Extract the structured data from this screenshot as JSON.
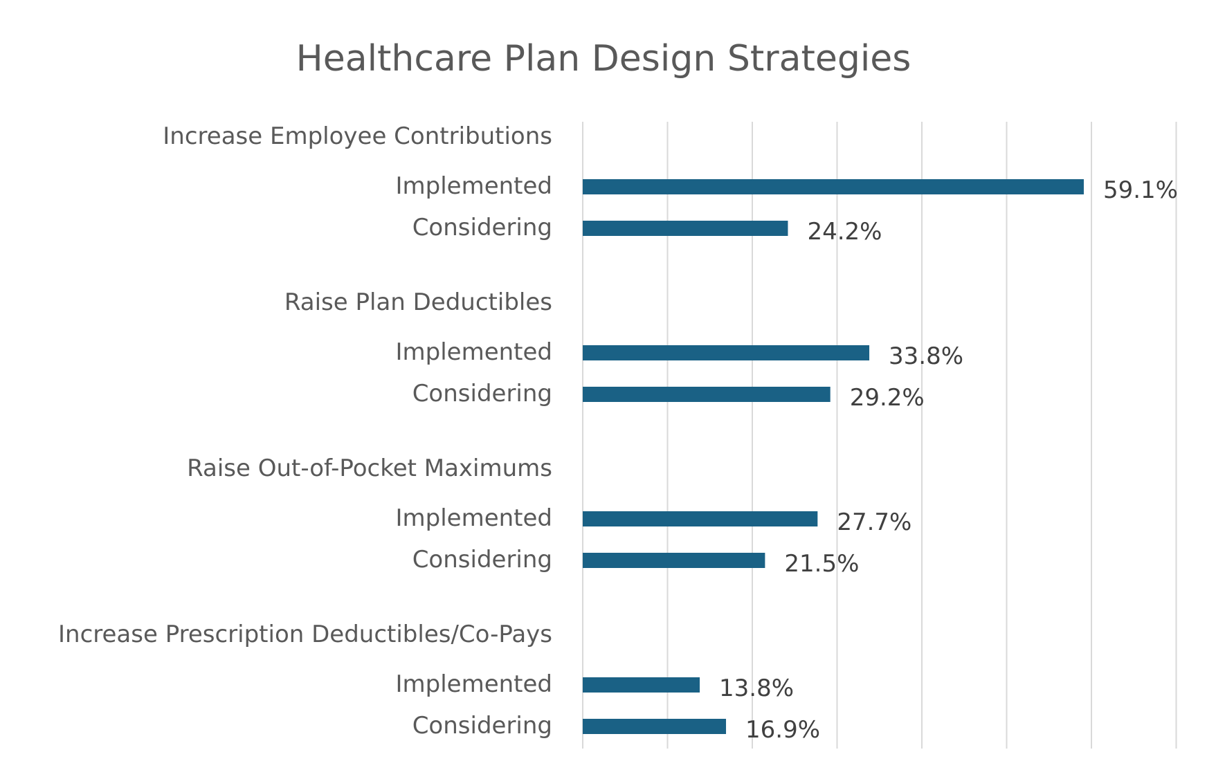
{
  "chart_data": {
    "type": "bar",
    "orientation": "horizontal",
    "title": "Healthcare Plan Design Strategies",
    "xlabel": "",
    "ylabel": "",
    "xlim": [
      0,
      70
    ],
    "x_tick_step": 10,
    "grid": "vertical",
    "legend": "none",
    "bar_color": "#1a6185",
    "value_suffix": "%",
    "groups": [
      {
        "label": "Increase Employee Contributions",
        "items": [
          {
            "label": "Implemented",
            "value": 59.1
          },
          {
            "label": "Considering",
            "value": 24.2
          }
        ]
      },
      {
        "label": "Raise Plan Deductibles",
        "items": [
          {
            "label": "Implemented",
            "value": 33.8
          },
          {
            "label": "Considering",
            "value": 29.2
          }
        ]
      },
      {
        "label": "Raise Out-of-Pocket Maximums",
        "items": [
          {
            "label": "Implemented",
            "value": 27.7
          },
          {
            "label": "Considering",
            "value": 21.5
          }
        ]
      },
      {
        "label": "Increase Prescription Deductibles/Co-Pays",
        "items": [
          {
            "label": "Implemented",
            "value": 13.8
          },
          {
            "label": "Considering",
            "value": 16.9
          }
        ]
      }
    ]
  }
}
